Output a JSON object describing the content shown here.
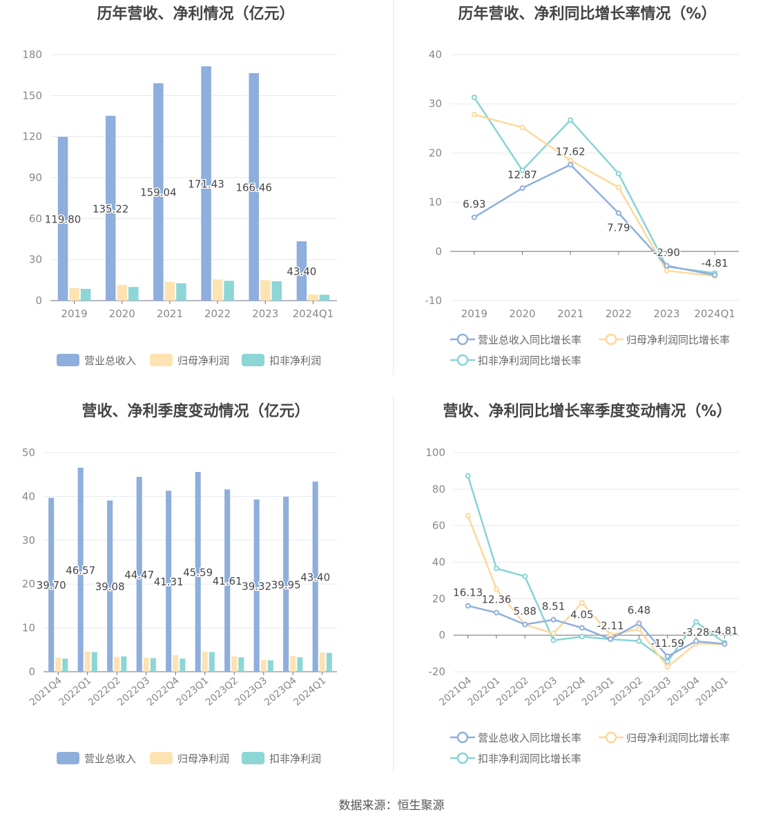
{
  "colors": {
    "revenue": "#8eaedc",
    "net_profit": "#fde2b2",
    "deducted_profit": "#8dd6d6",
    "revenue_line": "#8eaedc",
    "net_profit_line": "#fdd89a",
    "deducted_line": "#86d4d4",
    "grid": "#e6e8ef",
    "axis_text": "#888888",
    "label_text": "#444444"
  },
  "footer": "数据来源：恒生聚源",
  "chart_data": [
    {
      "id": "annual_amounts",
      "type": "bar",
      "title": "历年营收、净利情况（亿元）",
      "categories": [
        "2019",
        "2020",
        "2021",
        "2022",
        "2023",
        "2024Q1"
      ],
      "ylim": [
        0,
        180
      ],
      "yticks": [
        0,
        30,
        60,
        90,
        120,
        150,
        180
      ],
      "series": [
        {
          "name": "营业总收入",
          "values": [
            119.8,
            135.22,
            159.04,
            171.43,
            166.46,
            43.4
          ],
          "labels": [
            "119.80",
            "135.22",
            "159.04",
            "171.43",
            "166.46",
            "43.40"
          ]
        },
        {
          "name": "归母净利润",
          "values": [
            9.2,
            11.5,
            13.6,
            15.5,
            15.0,
            4.5
          ]
        },
        {
          "name": "扣非净利润",
          "values": [
            8.6,
            10.0,
            12.7,
            14.5,
            14.2,
            4.3
          ]
        }
      ],
      "legend": "bottom",
      "grid": true
    },
    {
      "id": "annual_growth",
      "type": "line",
      "title": "历年营收、净利同比增长率情况（%）",
      "categories": [
        "2019",
        "2020",
        "2021",
        "2022",
        "2023",
        "2024Q1"
      ],
      "ylim": [
        -10,
        40
      ],
      "yticks": [
        -10,
        0,
        10,
        20,
        30,
        40
      ],
      "series": [
        {
          "name": "营业总收入同比增长率",
          "values": [
            6.93,
            12.87,
            17.62,
            7.79,
            -2.9,
            -4.81
          ],
          "labels": [
            "6.93",
            "12.87",
            "17.62",
            "7.79",
            "-2.90",
            "-4.81"
          ]
        },
        {
          "name": "归母净利润同比增长率",
          "values": [
            27.8,
            25.2,
            18.5,
            13.0,
            -3.9,
            -5.0
          ]
        },
        {
          "name": "扣非净利润同比增长率",
          "values": [
            31.3,
            16.5,
            26.7,
            15.8,
            -3.1,
            -4.4
          ]
        }
      ],
      "legend": "bottom",
      "grid": true
    },
    {
      "id": "quarterly_amounts",
      "type": "bar",
      "title": "营收、净利季度变动情况（亿元）",
      "categories": [
        "2021Q4",
        "2022Q1",
        "2022Q2",
        "2022Q3",
        "2022Q4",
        "2023Q1",
        "2023Q2",
        "2023Q3",
        "2023Q4",
        "2024Q1"
      ],
      "ylim": [
        0,
        50
      ],
      "yticks": [
        0,
        10,
        20,
        30,
        40,
        50
      ],
      "series": [
        {
          "name": "营业总收入",
          "values": [
            39.7,
            46.57,
            39.08,
            44.47,
            41.31,
            45.59,
            41.61,
            39.32,
            39.95,
            43.4
          ],
          "labels": [
            "39.70",
            "46.57",
            "39.08",
            "44.47",
            "41.31",
            "45.59",
            "41.61",
            "39.32",
            "39.95",
            "43.40"
          ]
        },
        {
          "name": "归母净利润",
          "values": [
            3.2,
            4.6,
            3.4,
            3.2,
            3.8,
            4.6,
            3.5,
            2.7,
            3.6,
            4.4
          ]
        },
        {
          "name": "扣非净利润",
          "values": [
            3.0,
            4.5,
            3.5,
            3.1,
            3.0,
            4.5,
            3.3,
            2.6,
            3.3,
            4.3
          ]
        }
      ],
      "legend": "bottom",
      "grid": true
    },
    {
      "id": "quarterly_growth",
      "type": "line",
      "title": "营收、净利同比增长率季度变动情况（%）",
      "categories": [
        "2021Q4",
        "2022Q1",
        "2022Q2",
        "2022Q3",
        "2022Q4",
        "2023Q1",
        "2023Q2",
        "2023Q3",
        "2023Q4",
        "2024Q1"
      ],
      "ylim": [
        -20,
        100
      ],
      "yticks": [
        -20,
        0,
        20,
        40,
        60,
        80,
        100
      ],
      "series": [
        {
          "name": "营业总收入同比增长率",
          "values": [
            16.13,
            12.36,
            5.88,
            8.51,
            4.05,
            -2.11,
            6.48,
            -11.59,
            -3.28,
            -4.81
          ],
          "labels": [
            "16.13",
            "12.36",
            "5.88",
            "8.51",
            "4.05",
            "-2.11",
            "6.48",
            "-11.59",
            "-3.28",
            "-4.81"
          ]
        },
        {
          "name": "归母净利润同比增长率",
          "values": [
            65.5,
            25.3,
            5.8,
            1.0,
            17.8,
            0.3,
            3.3,
            -17.4,
            -4.6,
            -4.8
          ]
        },
        {
          "name": "扣非净利润同比增长率",
          "values": [
            87.3,
            36.6,
            32.2,
            -2.8,
            -0.8,
            -2.2,
            -3.2,
            -14.5,
            7.3,
            -4.2
          ]
        }
      ],
      "legend": "bottom",
      "grid": true
    }
  ]
}
